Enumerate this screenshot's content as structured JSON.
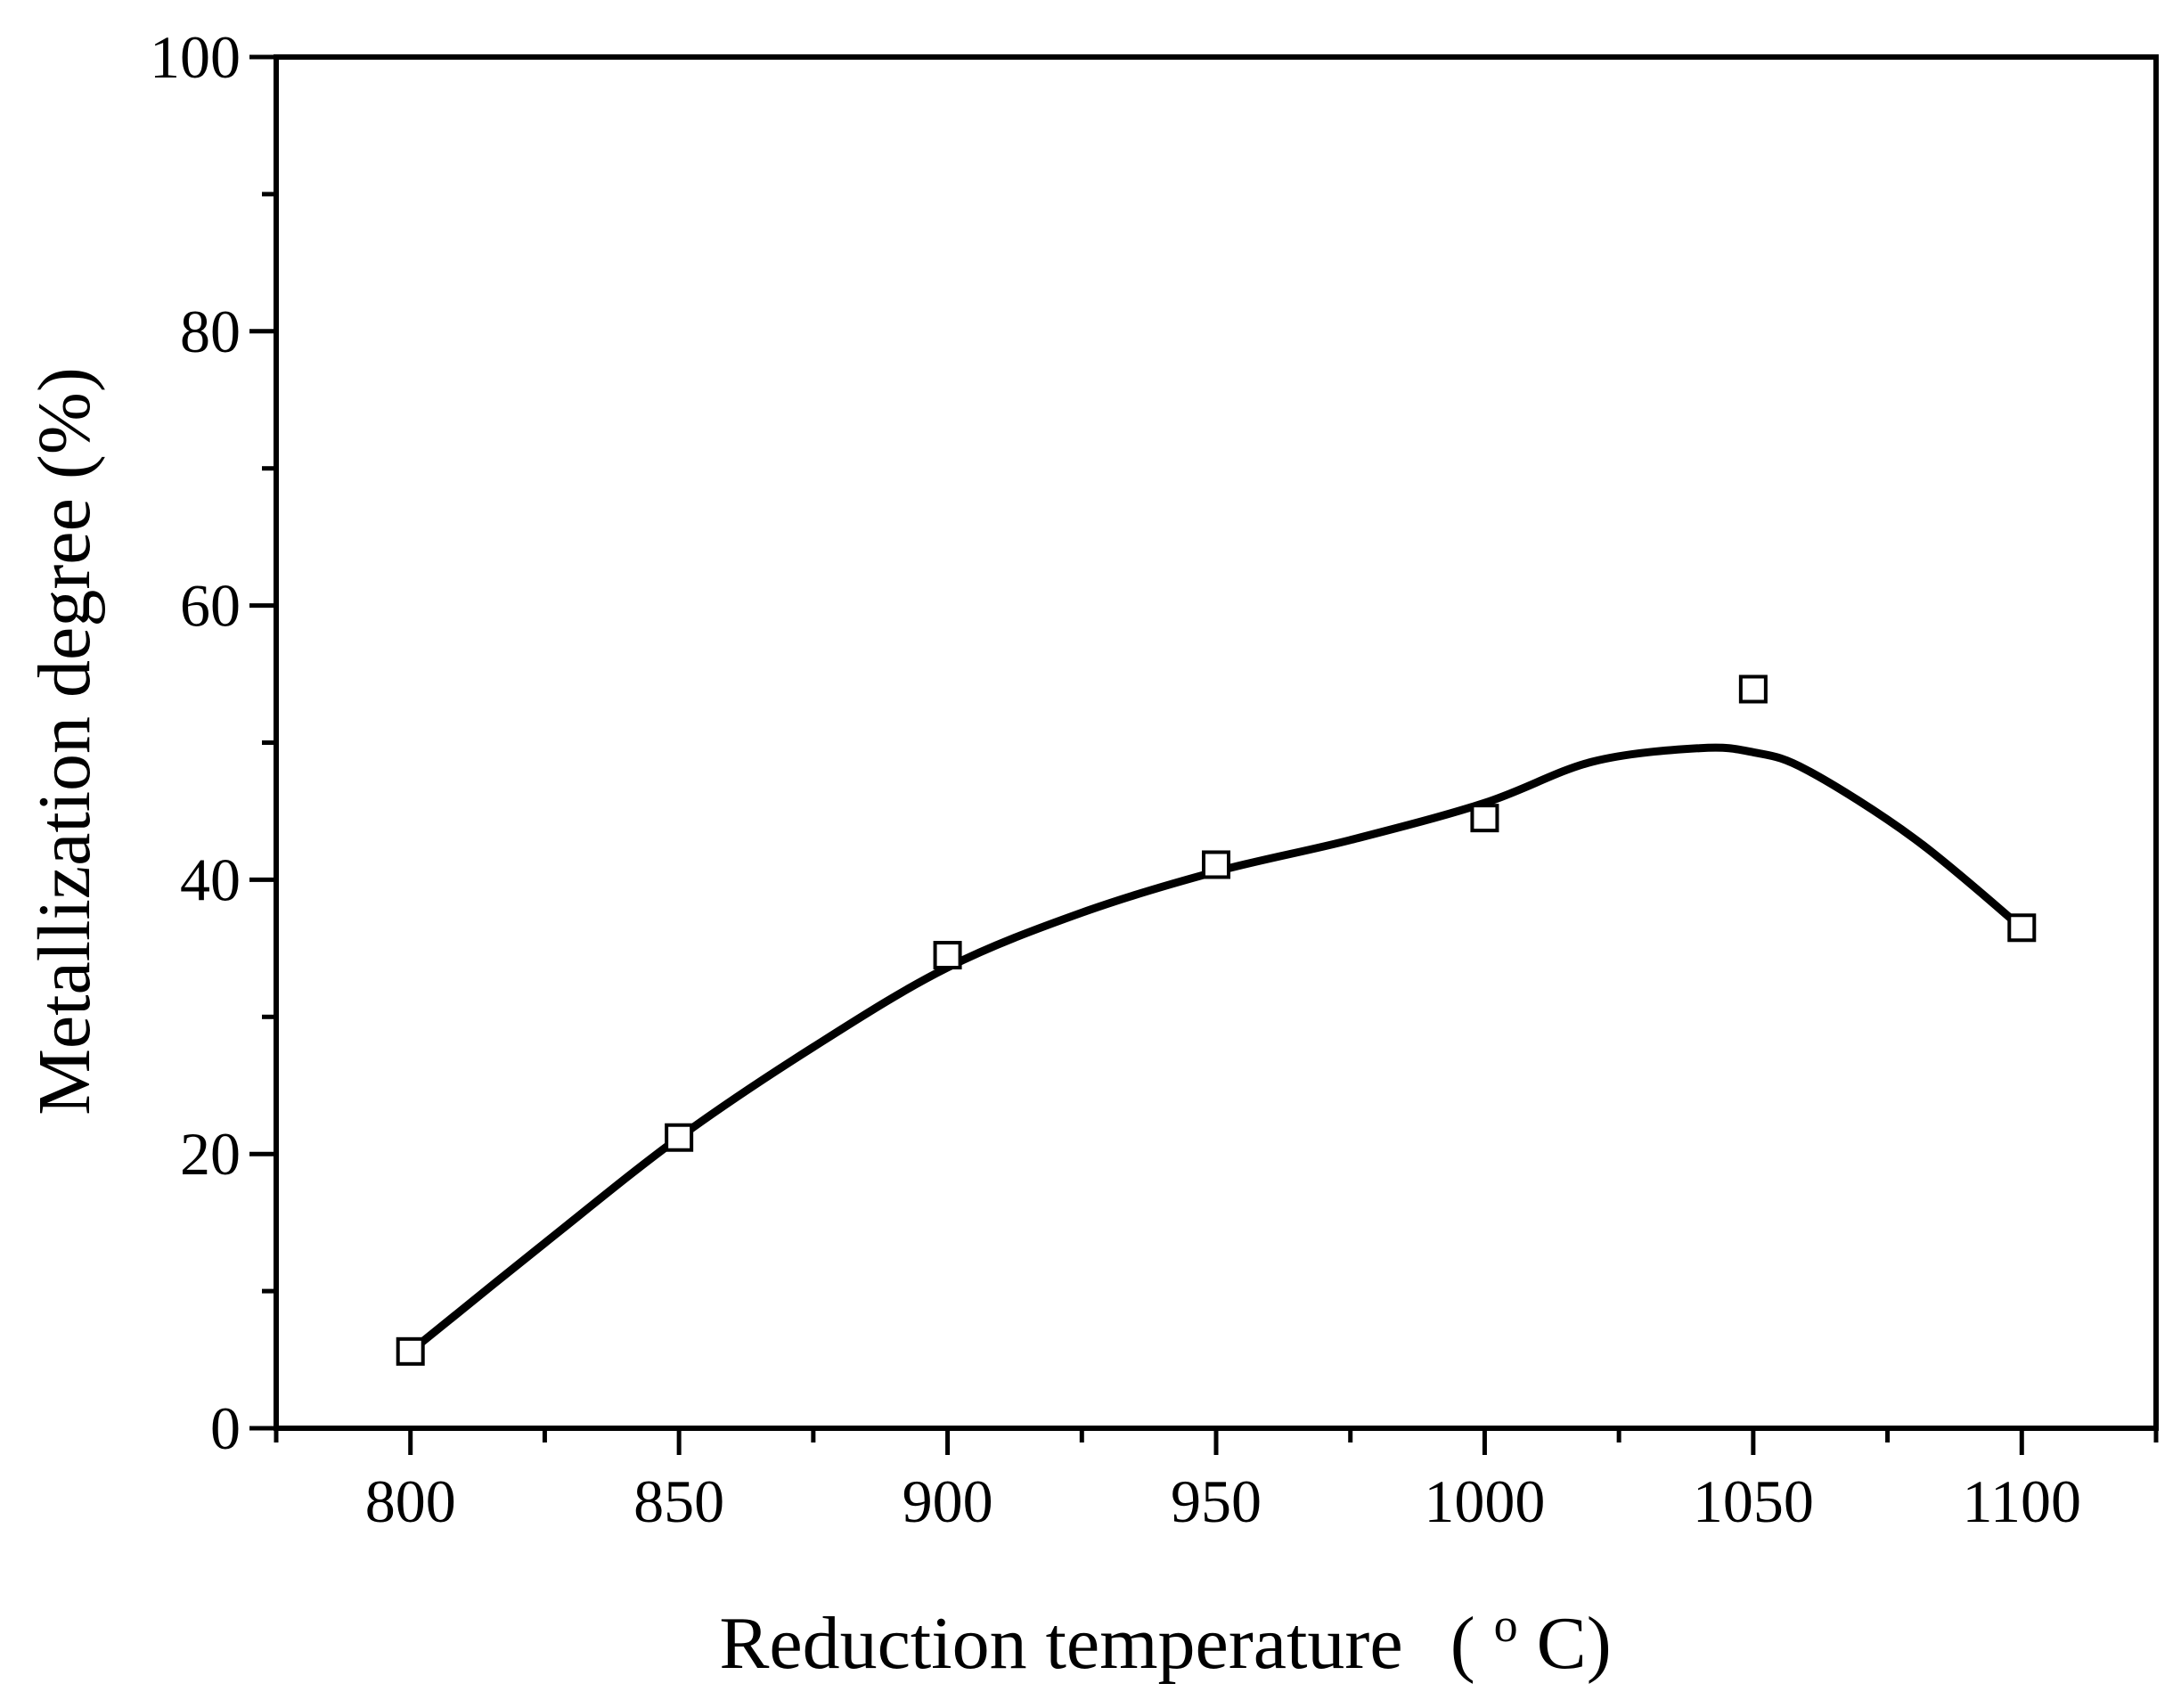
{
  "chart_data": {
    "type": "scatter",
    "title": "",
    "xlabel": "Reduction temperature",
    "xlabel_unit_open": "(",
    "xlabel_unit_sup": "o",
    "xlabel_unit_rest": "C)",
    "ylabel": "Metallization degree (%)",
    "xlim": [
      775,
      1125
    ],
    "ylim": [
      0,
      100
    ],
    "x_ticks": [
      800,
      850,
      900,
      950,
      1000,
      1050,
      1100
    ],
    "y_ticks": [
      0,
      20,
      40,
      60,
      80,
      100
    ],
    "x_minor_ticks": [
      775,
      825,
      875,
      925,
      975,
      1025,
      1075,
      1125
    ],
    "y_minor_ticks": [
      10,
      30,
      50,
      70,
      90
    ],
    "series": [
      {
        "name": "Metallization degree",
        "marker": "open-square",
        "x": [
          800,
          850,
          900,
          950,
          1000,
          1050,
          1100
        ],
        "y": [
          5.6,
          21.2,
          34.5,
          41.1,
          44.5,
          53.9,
          36.5
        ]
      }
    ],
    "fit_curve": {
      "name": "smooth fit",
      "x": [
        800,
        825,
        850,
        875,
        900,
        925,
        950,
        975,
        1000,
        1020,
        1040,
        1050,
        1060,
        1080,
        1100
      ],
      "y": [
        5.6,
        13.5,
        21.2,
        27.8,
        33.6,
        37.6,
        40.6,
        42.9,
        45.6,
        48.6,
        49.6,
        49.3,
        48.0,
        43.0,
        36.5
      ]
    },
    "colors": {
      "line": "#000000",
      "marker_fill": "#ffffff",
      "axis": "#000000"
    }
  }
}
